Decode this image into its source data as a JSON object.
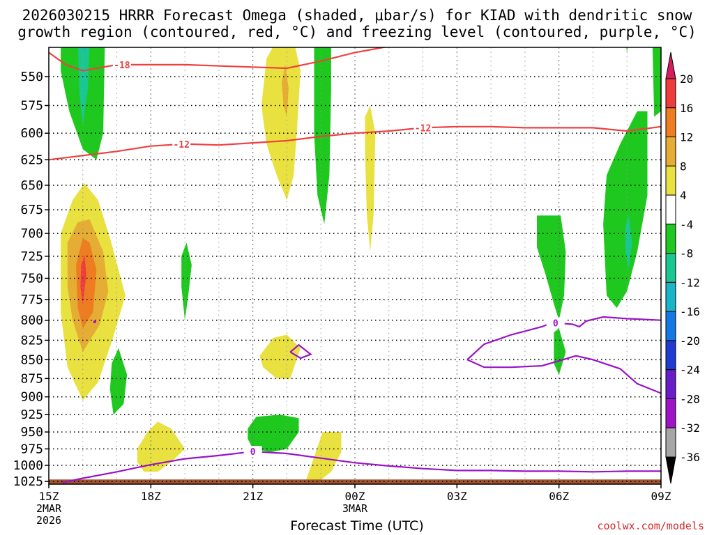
{
  "title": {
    "line1": "2026030215 HRRR Forecast Omega (shaded, μbar/s) for KIAD with dendritic snow",
    "line2": "growth region (contoured, red, °C) and freezing level (contoured, purple, °C)"
  },
  "xlabel": "Forecast Time (UTC)",
  "credit": "coolwx.com/models",
  "chart_data": {
    "type": "heatmap",
    "xlabel": "Forecast Time (UTC)",
    "x_ticks": [
      {
        "label": "15Z",
        "sub1": "2MAR",
        "sub2": "2026",
        "hour": 0
      },
      {
        "label": "18Z",
        "hour": 3
      },
      {
        "label": "21Z",
        "hour": 6
      },
      {
        "label": "00Z",
        "sub1": "3MAR",
        "hour": 9
      },
      {
        "label": "03Z",
        "hour": 12
      },
      {
        "label": "06Z",
        "hour": 15
      },
      {
        "label": "09Z",
        "hour": 18
      }
    ],
    "xlim": [
      0,
      18
    ],
    "y_ticks": [
      550,
      575,
      600,
      625,
      650,
      675,
      700,
      725,
      750,
      775,
      800,
      825,
      850,
      875,
      900,
      925,
      950,
      975,
      1000,
      1025
    ],
    "ylim": [
      520,
      1030
    ],
    "ground_hpa": 1022,
    "colorbar": {
      "labels": [
        20,
        16,
        12,
        8,
        4,
        -4,
        -8,
        -12,
        -16,
        -20,
        -24,
        -28,
        -32,
        -36
      ],
      "colors": [
        "#d81b60",
        "#ef3b3b",
        "#ee7d22",
        "#e5ad33",
        "#e9e140",
        "#ffffff",
        "#1ec81e",
        "#18c890",
        "#19b4c8",
        "#1478e6",
        "#1e3cd2",
        "#6a1cc8",
        "#a012c8",
        "#a6a6a6",
        "#000000"
      ]
    },
    "contour_labels": {
      "dgz_top": "-18",
      "dgz_bottom": "-12",
      "freezing": "0"
    },
    "shaded_regions": [
      {
        "omega": -8,
        "pts": [
          [
            0.35,
            520
          ],
          [
            1.65,
            520
          ],
          [
            1.6,
            600
          ],
          [
            1.4,
            625
          ],
          [
            1.0,
            615
          ],
          [
            0.6,
            580
          ],
          [
            0.35,
            545
          ]
        ]
      },
      {
        "omega": -12,
        "pts": [
          [
            0.85,
            520
          ],
          [
            1.2,
            520
          ],
          [
            1.15,
            560
          ],
          [
            1.0,
            592
          ],
          [
            0.9,
            565
          ]
        ]
      },
      {
        "omega": -16,
        "pts": [
          [
            0.95,
            520
          ],
          [
            1.1,
            520
          ],
          [
            1.05,
            530
          ]
        ]
      },
      {
        "omega": -4,
        "pts": [
          [
            0.95,
            520
          ],
          [
            0.97,
            520
          ],
          [
            0.96,
            521
          ]
        ]
      },
      {
        "omega": 4,
        "pts": [
          [
            0.35,
            700
          ],
          [
            0.7,
            665
          ],
          [
            1.05,
            648
          ],
          [
            1.45,
            665
          ],
          [
            1.8,
            705
          ],
          [
            2.25,
            770
          ],
          [
            1.9,
            820
          ],
          [
            1.45,
            880
          ],
          [
            1.0,
            905
          ],
          [
            0.55,
            860
          ],
          [
            0.35,
            790
          ]
        ]
      },
      {
        "omega": 8,
        "pts": [
          [
            0.55,
            710
          ],
          [
            0.85,
            688
          ],
          [
            1.2,
            685
          ],
          [
            1.6,
            720
          ],
          [
            1.75,
            765
          ],
          [
            1.5,
            805
          ],
          [
            1.0,
            840
          ],
          [
            0.7,
            800
          ],
          [
            0.55,
            760
          ]
        ]
      },
      {
        "omega": 12,
        "pts": [
          [
            0.8,
            735
          ],
          [
            1.0,
            705
          ],
          [
            1.2,
            710
          ],
          [
            1.4,
            740
          ],
          [
            1.3,
            790
          ],
          [
            1.0,
            810
          ],
          [
            0.85,
            785
          ]
        ]
      },
      {
        "omega": 16,
        "pts": [
          [
            0.95,
            735
          ],
          [
            1.05,
            724
          ],
          [
            1.1,
            745
          ],
          [
            1.0,
            782
          ],
          [
            0.93,
            760
          ]
        ]
      },
      {
        "omega": -8,
        "pts": [
          [
            1.85,
            855
          ],
          [
            2.05,
            835
          ],
          [
            2.3,
            870
          ],
          [
            2.2,
            910
          ],
          [
            1.9,
            925
          ],
          [
            1.8,
            890
          ]
        ]
      },
      {
        "omega": -8,
        "pts": [
          [
            3.9,
            725
          ],
          [
            4.05,
            710
          ],
          [
            4.2,
            735
          ],
          [
            4.1,
            770
          ],
          [
            4.0,
            800
          ],
          [
            3.9,
            760
          ]
        ]
      },
      {
        "omega": 4,
        "pts": [
          [
            6.25,
            575
          ],
          [
            6.4,
            535
          ],
          [
            6.7,
            520
          ],
          [
            7.2,
            520
          ],
          [
            7.4,
            545
          ],
          [
            7.3,
            595
          ],
          [
            7.2,
            640
          ],
          [
            7.0,
            665
          ],
          [
            6.7,
            640
          ],
          [
            6.4,
            610
          ]
        ]
      },
      {
        "omega": 8,
        "pts": [
          [
            6.85,
            555
          ],
          [
            6.95,
            540
          ],
          [
            7.05,
            560
          ],
          [
            7.0,
            585
          ],
          [
            6.9,
            575
          ]
        ]
      },
      {
        "omega": 4,
        "pts": [
          [
            6.2,
            845
          ],
          [
            6.6,
            822
          ],
          [
            7.0,
            818
          ],
          [
            7.4,
            835
          ],
          [
            7.1,
            875
          ],
          [
            6.7,
            875
          ],
          [
            6.3,
            860
          ]
        ]
      },
      {
        "omega": -8,
        "pts": [
          [
            7.8,
            520
          ],
          [
            8.3,
            520
          ],
          [
            8.3,
            560
          ],
          [
            8.25,
            640
          ],
          [
            8.1,
            690
          ],
          [
            7.9,
            660
          ],
          [
            7.8,
            600
          ]
        ]
      },
      {
        "omega": 4,
        "pts": [
          [
            9.3,
            585
          ],
          [
            9.45,
            575
          ],
          [
            9.6,
            600
          ],
          [
            9.55,
            680
          ],
          [
            9.45,
            720
          ],
          [
            9.35,
            680
          ],
          [
            9.3,
            620
          ]
        ]
      },
      {
        "omega": 4,
        "pts": [
          [
            2.6,
            975
          ],
          [
            2.9,
            950
          ],
          [
            3.2,
            935
          ],
          [
            3.6,
            945
          ],
          [
            4.0,
            975
          ],
          [
            3.6,
            995
          ],
          [
            3.2,
            1010
          ],
          [
            2.8,
            1010
          ],
          [
            2.6,
            995
          ]
        ]
      },
      {
        "omega": -8,
        "pts": [
          [
            5.85,
            945
          ],
          [
            6.1,
            928
          ],
          [
            6.8,
            925
          ],
          [
            7.35,
            930
          ],
          [
            7.35,
            950
          ],
          [
            7.0,
            975
          ],
          [
            6.5,
            980
          ],
          [
            6.0,
            975
          ],
          [
            5.85,
            960
          ]
        ]
      },
      {
        "omega": 4,
        "pts": [
          [
            7.55,
            1025
          ],
          [
            7.85,
            980
          ],
          [
            8.05,
            950
          ],
          [
            8.6,
            950
          ],
          [
            8.6,
            980
          ],
          [
            8.3,
            1010
          ],
          [
            7.95,
            1025
          ]
        ]
      },
      {
        "omega": -8,
        "pts": [
          [
            14.35,
            681
          ],
          [
            15.05,
            681
          ],
          [
            15.2,
            720
          ],
          [
            15.15,
            770
          ],
          [
            15.0,
            800
          ],
          [
            14.85,
            780
          ],
          [
            14.6,
            745
          ],
          [
            14.35,
            715
          ]
        ]
      },
      {
        "omega": -8,
        "pts": [
          [
            14.85,
            815
          ],
          [
            15.0,
            810
          ],
          [
            15.2,
            840
          ],
          [
            15.0,
            870
          ],
          [
            14.85,
            855
          ]
        ]
      },
      {
        "omega": -8,
        "pts": [
          [
            16.4,
            640
          ],
          [
            16.8,
            610
          ],
          [
            17.3,
            580
          ],
          [
            17.6,
            580
          ],
          [
            17.6,
            660
          ],
          [
            17.3,
            720
          ],
          [
            17.0,
            765
          ],
          [
            16.7,
            785
          ],
          [
            16.4,
            770
          ],
          [
            16.3,
            690
          ]
        ]
      },
      {
        "omega": -12,
        "pts": [
          [
            16.95,
            695
          ],
          [
            17.05,
            680
          ],
          [
            17.15,
            710
          ],
          [
            17.05,
            740
          ],
          [
            16.95,
            720
          ]
        ]
      },
      {
        "omega": -8,
        "pts": [
          [
            16.95,
            520
          ],
          [
            17.05,
            520
          ],
          [
            17.0,
            530
          ]
        ]
      },
      {
        "omega": -8,
        "pts": [
          [
            17.75,
            525
          ],
          [
            18.0,
            520
          ],
          [
            18.0,
            580
          ],
          [
            17.8,
            585
          ]
        ]
      }
    ],
    "dgz_top_line": [
      [
        0,
        530
      ],
      [
        0.5,
        540
      ],
      [
        1.0,
        545
      ],
      [
        2.0,
        540
      ],
      [
        4.0,
        540
      ],
      [
        6.0,
        542
      ],
      [
        7.0,
        543
      ],
      [
        8.0,
        537
      ],
      [
        9.0,
        530
      ],
      [
        10.0,
        525
      ],
      [
        11.5,
        518
      ],
      [
        13.0,
        521
      ],
      [
        15.0,
        520
      ],
      [
        17.0,
        518
      ],
      [
        18.0,
        521
      ]
    ],
    "dgz_bottom_line": [
      [
        0,
        625
      ],
      [
        1.0,
        621
      ],
      [
        2.0,
        617
      ],
      [
        3.0,
        612
      ],
      [
        4.0,
        610
      ],
      [
        5.0,
        611
      ],
      [
        6.0,
        609
      ],
      [
        7.0,
        607
      ],
      [
        8.0,
        603
      ],
      [
        9.0,
        600
      ],
      [
        10.0,
        598
      ],
      [
        11.0,
        595
      ],
      [
        12.0,
        594
      ],
      [
        13.0,
        594
      ],
      [
        14.0,
        595
      ],
      [
        15.0,
        595
      ],
      [
        16.0,
        595
      ],
      [
        17.0,
        598
      ],
      [
        18.0,
        594
      ]
    ],
    "freezing_line": [
      [
        0.4,
        1027
      ],
      [
        1.0,
        1020
      ],
      [
        2.0,
        1010
      ],
      [
        3.0,
        999
      ],
      [
        4.0,
        990
      ],
      [
        5.0,
        985
      ],
      [
        6.0,
        979
      ],
      [
        7.0,
        982
      ],
      [
        8.0,
        989
      ],
      [
        9.0,
        996
      ],
      [
        10.0,
        1001
      ],
      [
        11.0,
        1005
      ],
      [
        12.0,
        1008
      ],
      [
        13.0,
        1008
      ],
      [
        14.0,
        1009
      ],
      [
        15.0,
        1009
      ],
      [
        16.0,
        1010
      ],
      [
        17.0,
        1009
      ],
      [
        18.0,
        1009
      ]
    ],
    "freezing_upper_line": [
      [
        12.3,
        850
      ],
      [
        12.8,
        830
      ],
      [
        13.6,
        818
      ],
      [
        14.5,
        808
      ],
      [
        14.8,
        803
      ],
      [
        15.4,
        805
      ],
      [
        15.6,
        808
      ],
      [
        15.8,
        801
      ],
      [
        16.3,
        796
      ],
      [
        17.0,
        798
      ],
      [
        18.0,
        800
      ]
    ],
    "freezing_lower_line": [
      [
        12.3,
        850
      ],
      [
        12.8,
        860
      ],
      [
        13.6,
        860
      ],
      [
        14.5,
        858
      ],
      [
        15.5,
        845
      ],
      [
        16.0,
        850
      ],
      [
        16.8,
        862
      ],
      [
        17.3,
        882
      ],
      [
        18.0,
        895
      ]
    ],
    "freezing_small_loop": [
      [
        7.1,
        840
      ],
      [
        7.35,
        831
      ],
      [
        7.7,
        843
      ],
      [
        7.4,
        848
      ],
      [
        7.1,
        840
      ]
    ],
    "dgz_top_label_x": 2.15,
    "dgz_bottom_label_x": 3.9,
    "dgz_bottom_label2_x": 11.0,
    "freezing_label_x": 6.0,
    "freezing_upper_label_x": 14.9
  }
}
